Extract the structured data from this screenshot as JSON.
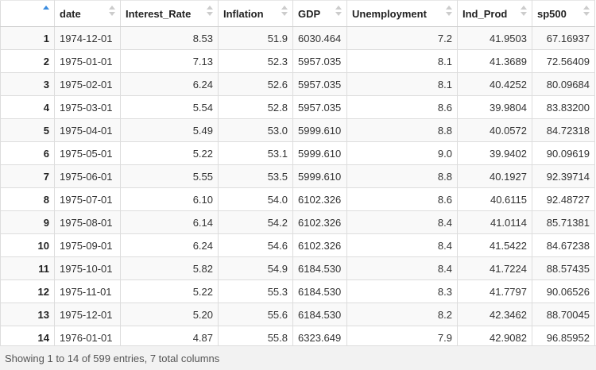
{
  "table": {
    "columns": [
      {
        "label": "",
        "icon": "sort-asc-icon"
      },
      {
        "label": "date",
        "icon": "sort-icon"
      },
      {
        "label": "Interest_Rate",
        "icon": "sort-icon"
      },
      {
        "label": "Inflation",
        "icon": "sort-icon"
      },
      {
        "label": "GDP",
        "icon": "sort-icon"
      },
      {
        "label": "Unemployment",
        "icon": "sort-icon"
      },
      {
        "label": "Ind_Prod",
        "icon": "sort-icon"
      },
      {
        "label": "sp500",
        "icon": "sort-icon"
      }
    ],
    "rows": [
      [
        "1",
        "1974-12-01",
        "8.53",
        "51.9",
        "6030.464",
        "7.2",
        "41.9503",
        "67.16937"
      ],
      [
        "2",
        "1975-01-01",
        "7.13",
        "52.3",
        "5957.035",
        "8.1",
        "41.3689",
        "72.56409"
      ],
      [
        "3",
        "1975-02-01",
        "6.24",
        "52.6",
        "5957.035",
        "8.1",
        "40.4252",
        "80.09684"
      ],
      [
        "4",
        "1975-03-01",
        "5.54",
        "52.8",
        "5957.035",
        "8.6",
        "39.9804",
        "83.83200"
      ],
      [
        "5",
        "1975-04-01",
        "5.49",
        "53.0",
        "5999.610",
        "8.8",
        "40.0572",
        "84.72318"
      ],
      [
        "6",
        "1975-05-01",
        "5.22",
        "53.1",
        "5999.610",
        "9.0",
        "39.9402",
        "90.09619"
      ],
      [
        "7",
        "1975-06-01",
        "5.55",
        "53.5",
        "5999.610",
        "8.8",
        "40.1927",
        "92.39714"
      ],
      [
        "8",
        "1975-07-01",
        "6.10",
        "54.0",
        "6102.326",
        "8.6",
        "40.6115",
        "92.48727"
      ],
      [
        "9",
        "1975-08-01",
        "6.14",
        "54.2",
        "6102.326",
        "8.4",
        "41.0114",
        "85.71381"
      ],
      [
        "10",
        "1975-09-01",
        "6.24",
        "54.6",
        "6102.326",
        "8.4",
        "41.5422",
        "84.67238"
      ],
      [
        "11",
        "1975-10-01",
        "5.82",
        "54.9",
        "6184.530",
        "8.4",
        "41.7224",
        "88.57435"
      ],
      [
        "12",
        "1975-11-01",
        "5.22",
        "55.3",
        "6184.530",
        "8.3",
        "41.7797",
        "90.06526"
      ],
      [
        "13",
        "1975-12-01",
        "5.20",
        "55.6",
        "6184.530",
        "8.2",
        "42.3462",
        "88.70045"
      ],
      [
        "14",
        "1976-01-01",
        "4.87",
        "55.8",
        "6323.649",
        "7.9",
        "42.9082",
        "96.85952"
      ]
    ]
  },
  "footer": {
    "status": "Showing 1 to 14 of 599 entries, 7 total columns"
  },
  "colors": {
    "sort_active": "#3b8de0",
    "sort_inactive": "#cccccc",
    "stripe": "#f9f9f9",
    "border": "#dddddd"
  }
}
